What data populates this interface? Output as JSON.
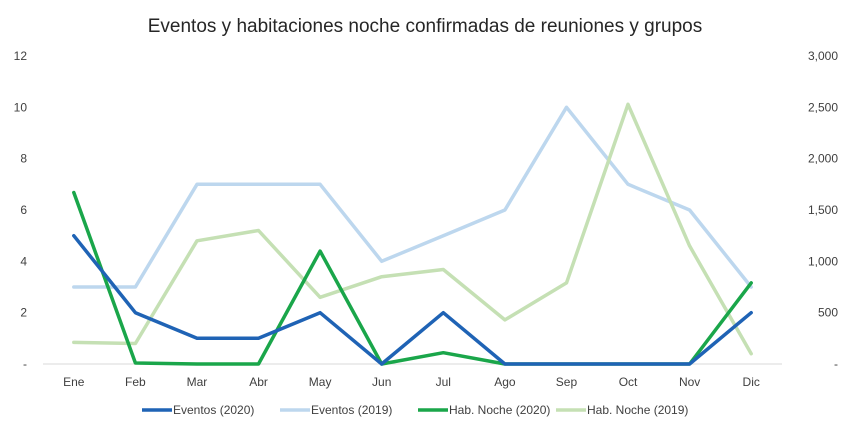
{
  "chart_data": {
    "type": "line",
    "title": "Eventos y habitaciones noche confirmadas de reuniones y grupos",
    "categories": [
      "Ene",
      "Feb",
      "Mar",
      "Abr",
      "May",
      "Jun",
      "Jul",
      "Ago",
      "Sep",
      "Oct",
      "Nov",
      "Dic"
    ],
    "y_left": {
      "min": 0,
      "max": 12,
      "ticks": [
        "-",
        "2",
        "4",
        "6",
        "8",
        "10",
        "12"
      ],
      "tick_values": [
        0,
        2,
        4,
        6,
        8,
        10,
        12
      ]
    },
    "y_right": {
      "min": 0,
      "max": 3000,
      "ticks": [
        "-",
        "500",
        "1,000",
        "1,500",
        "2,000",
        "2,500",
        "3,000"
      ],
      "tick_values": [
        0,
        500,
        1000,
        1500,
        2000,
        2500,
        3000
      ]
    },
    "grid": false,
    "legend_position": "bottom",
    "series": [
      {
        "name": "Eventos (2020)",
        "axis": "left",
        "color": "#1f63b5",
        "values": [
          5,
          2,
          1,
          1,
          2,
          0,
          2,
          0,
          0,
          0,
          0,
          2
        ]
      },
      {
        "name": "Eventos (2019)",
        "axis": "left",
        "color": "#bdd7ee",
        "values": [
          3,
          3,
          7,
          7,
          7,
          4,
          5,
          6,
          10,
          7,
          6,
          3
        ]
      },
      {
        "name": "Hab. Noche (2020)",
        "axis": "right",
        "color": "#1aa64a",
        "values": [
          1670,
          10,
          0,
          0,
          1100,
          0,
          110,
          0,
          0,
          0,
          0,
          790
        ]
      },
      {
        "name": "Hab. Noche (2019)",
        "axis": "right",
        "color": "#c5e0b4",
        "values": [
          210,
          200,
          1200,
          1300,
          650,
          850,
          920,
          430,
          790,
          2530,
          1150,
          100
        ]
      }
    ]
  }
}
